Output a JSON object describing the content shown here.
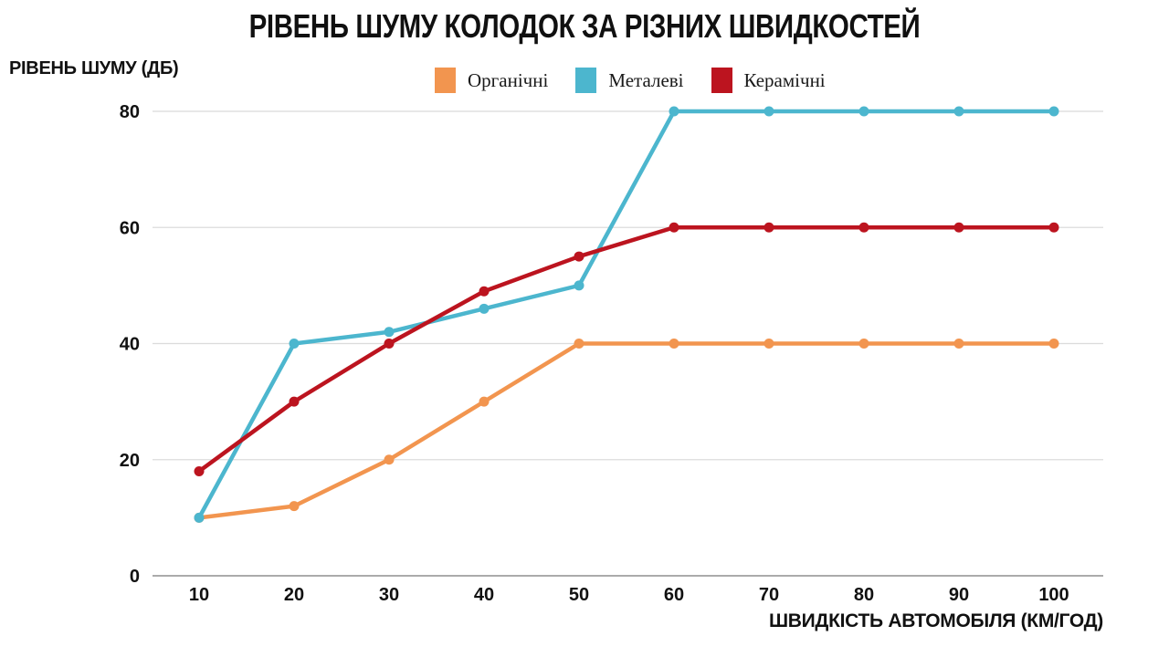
{
  "title": "РІВЕНЬ ШУМУ КОЛОДОК ЗА РІЗНИХ ШВИДКОСТЕЙ",
  "chart_data": {
    "type": "line",
    "title": "РІВЕНЬ ШУМУ КОЛОДОК ЗА РІЗНИХ ШВИДКОСТЕЙ",
    "xlabel": "ШВИДКІСТЬ АВТОМОБІЛЯ (КМ/ГОД)",
    "ylabel": "РІВЕНЬ ШУМУ (ДБ)",
    "x": [
      10,
      20,
      30,
      40,
      50,
      60,
      70,
      80,
      90,
      100
    ],
    "series": [
      {
        "name": "Органічні",
        "color": "#F2954F",
        "values": [
          10,
          12,
          20,
          30,
          40,
          40,
          40,
          40,
          40,
          40
        ]
      },
      {
        "name": "Металеві",
        "color": "#4CB6CE",
        "values": [
          10,
          40,
          42,
          46,
          50,
          80,
          80,
          80,
          80,
          80
        ]
      },
      {
        "name": "Керамічні",
        "color": "#BC141F",
        "values": [
          18,
          30,
          40,
          49,
          55,
          60,
          60,
          60,
          60,
          60
        ]
      }
    ],
    "yticks": [
      0,
      20,
      40,
      60,
      80
    ],
    "ylim": [
      0,
      85
    ],
    "grid": true,
    "legend_position": "top-center"
  },
  "colors": {
    "background": "#FFFFFF",
    "gridline": "#DBDBDB",
    "axis_line": "#8F8F8F",
    "text": "#111111"
  }
}
